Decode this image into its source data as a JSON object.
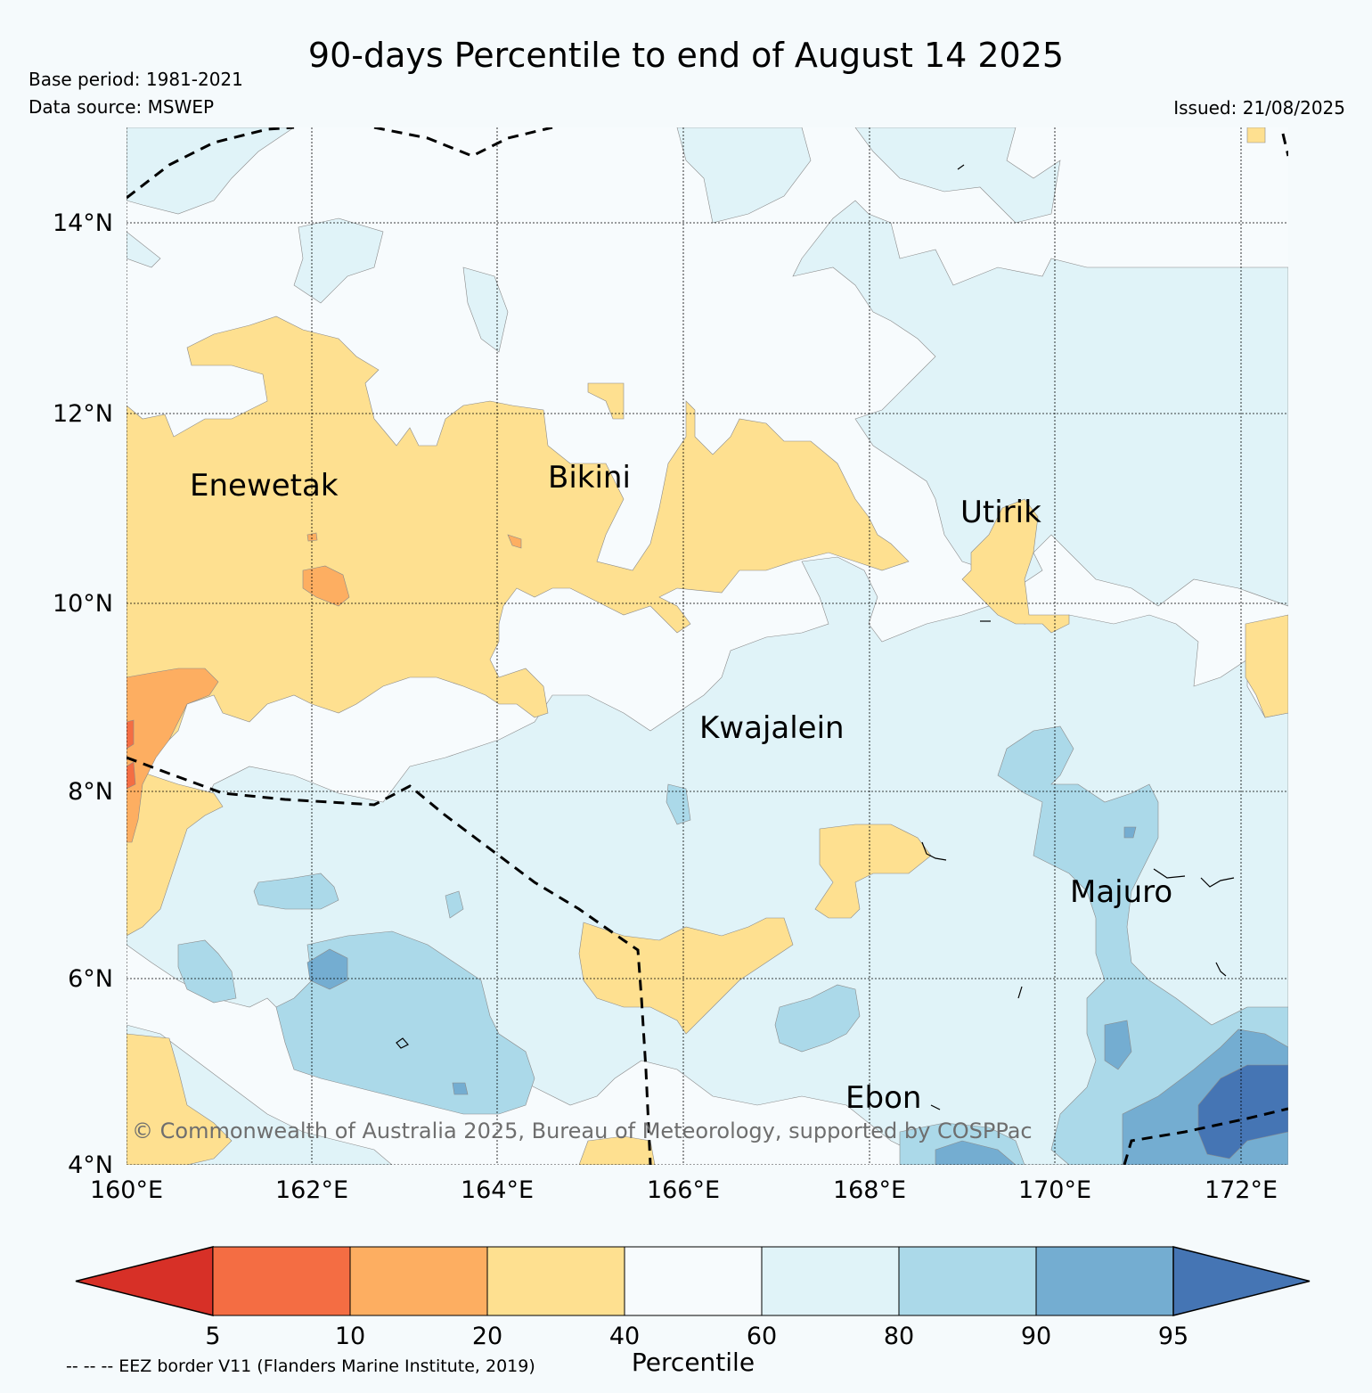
{
  "header": {
    "title": "90-days Percentile to end of August 14 2025",
    "base_period": "Base period: 1981-2021",
    "data_source": "Data source: MSWEP",
    "issued": "Issued: 21/08/2025"
  },
  "map": {
    "region": "Marshall Islands",
    "lat_range": [
      4,
      15
    ],
    "lon_range": [
      160,
      172.5
    ],
    "lat_ticks": [
      "14°N",
      "12°N",
      "10°N",
      "8°N",
      "6°N",
      "4°N"
    ],
    "lon_ticks": [
      "160°E",
      "162°E",
      "164°E",
      "166°E",
      "168°E",
      "170°E",
      "172°E"
    ],
    "places": [
      {
        "name": "Enewetak",
        "lon": 162.2,
        "lat": 11.3
      },
      {
        "name": "Bikini",
        "lon": 165.6,
        "lat": 11.4
      },
      {
        "name": "Utirik",
        "lon": 169.4,
        "lat": 10.9
      },
      {
        "name": "Kwajalein",
        "lon": 167.3,
        "lat": 8.7
      },
      {
        "name": "Majuro",
        "lon": 171.1,
        "lat": 7.1
      },
      {
        "name": "Ebon",
        "lon": 168.7,
        "lat": 4.8
      }
    ],
    "copyright": "© Commonwealth of Australia 2025, Bureau of Meteorology, supported by COSPPac",
    "gridlines": true
  },
  "colorbar": {
    "ticks": [
      "5",
      "10",
      "20",
      "40",
      "60",
      "80",
      "90",
      "95"
    ],
    "colors": [
      "#d73027",
      "#f46d43",
      "#fdae61",
      "#fee090",
      "#f7fbfd",
      "#e0f3f8",
      "#abd9e9",
      "#74add1",
      "#4575b4"
    ],
    "label": "Percentile"
  },
  "footer": {
    "eez_note": "-- -- -- EEZ border V11 (Flanders Marine Institute, 2019)"
  }
}
